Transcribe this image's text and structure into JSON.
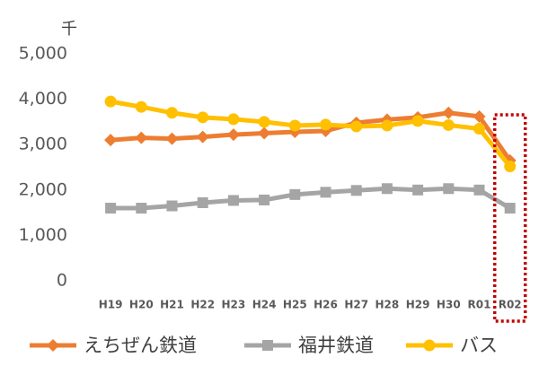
{
  "chart_data": {
    "type": "line",
    "y_unit": "千",
    "categories": [
      "H19",
      "H20",
      "H21",
      "H22",
      "H23",
      "H24",
      "H25",
      "H26",
      "H27",
      "H28",
      "H29",
      "H30",
      "R01",
      "R02"
    ],
    "series": [
      {
        "name": "えちぜん鉄道",
        "color": "#ed7d31",
        "marker": "diamond",
        "values": [
          3100,
          3150,
          3130,
          3170,
          3220,
          3250,
          3280,
          3300,
          3480,
          3550,
          3600,
          3700,
          3620,
          2650
        ]
      },
      {
        "name": "福井鉄道",
        "color": "#a5a5a5",
        "marker": "square",
        "values": [
          1600,
          1600,
          1650,
          1720,
          1770,
          1780,
          1900,
          1950,
          1990,
          2030,
          2000,
          2030,
          2000,
          1600
        ]
      },
      {
        "name": "バス",
        "color": "#ffc000",
        "marker": "circle",
        "values": [
          3950,
          3830,
          3700,
          3600,
          3560,
          3500,
          3420,
          3440,
          3400,
          3420,
          3520,
          3430,
          3350,
          2520
        ]
      }
    ],
    "ylim": [
      0,
      5000
    ],
    "yticks": [
      0,
      {
        "value": 1000,
        "label": "1,000"
      },
      {
        "value": 2000,
        "label": "2,000"
      },
      {
        "value": 3000,
        "label": "3,000"
      },
      {
        "value": 4000,
        "label": "4,000"
      },
      {
        "value": 5000,
        "label": "5,000"
      }
    ],
    "grid": false,
    "legend": "bottom"
  }
}
